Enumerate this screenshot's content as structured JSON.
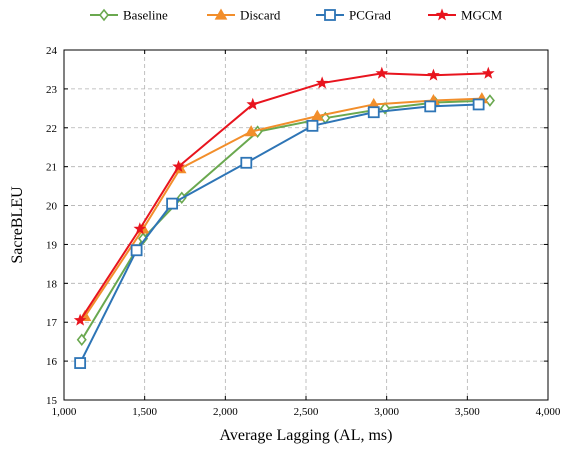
{
  "chart_data": {
    "type": "line",
    "title": "",
    "xlabel": "Average Lagging (AL, ms)",
    "ylabel": "SacreBLEU",
    "xlim": [
      1000,
      4000
    ],
    "ylim": [
      15,
      24
    ],
    "xticks": [
      1000,
      1500,
      2000,
      2500,
      3000,
      3500,
      4000
    ],
    "xtick_labels": [
      "1,000",
      "1,500",
      "2,000",
      "2,500",
      "3,000",
      "3,500",
      "4,000"
    ],
    "yticks": [
      15,
      16,
      17,
      18,
      19,
      20,
      21,
      22,
      23,
      24
    ],
    "ytick_labels": [
      "15",
      "16",
      "17",
      "18",
      "19",
      "20",
      "21",
      "22",
      "23",
      "24"
    ],
    "grid": true,
    "legend_position": "top-outside",
    "series": [
      {
        "name": "Baseline",
        "color": "#6aa84f",
        "marker": "diamond",
        "points": [
          [
            1110,
            16.55
          ],
          [
            1490,
            19.15
          ],
          [
            1730,
            20.2
          ],
          [
            2200,
            21.9
          ],
          [
            2620,
            22.25
          ],
          [
            2990,
            22.5
          ],
          [
            3300,
            22.65
          ],
          [
            3640,
            22.7
          ]
        ]
      },
      {
        "name": "Discard",
        "color": "#f28e2b",
        "marker": "triangle",
        "points": [
          [
            1130,
            17.15
          ],
          [
            1490,
            19.4
          ],
          [
            1720,
            20.95
          ],
          [
            2160,
            21.9
          ],
          [
            2570,
            22.3
          ],
          [
            2920,
            22.6
          ],
          [
            3290,
            22.7
          ],
          [
            3590,
            22.75
          ]
        ]
      },
      {
        "name": "PCGrad",
        "color": "#2e75b6",
        "marker": "square",
        "points": [
          [
            1100,
            15.95
          ],
          [
            1450,
            18.85
          ],
          [
            1670,
            20.05
          ],
          [
            2130,
            21.1
          ],
          [
            2540,
            22.05
          ],
          [
            2920,
            22.4
          ],
          [
            3270,
            22.55
          ],
          [
            3570,
            22.6
          ]
        ]
      },
      {
        "name": "MGCM",
        "color": "#e8141e",
        "marker": "star",
        "points": [
          [
            1100,
            17.05
          ],
          [
            1470,
            19.4
          ],
          [
            1710,
            21.0
          ],
          [
            2170,
            22.6
          ],
          [
            2600,
            23.15
          ],
          [
            2970,
            23.4
          ],
          [
            3290,
            23.35
          ],
          [
            3630,
            23.4
          ]
        ]
      }
    ]
  }
}
